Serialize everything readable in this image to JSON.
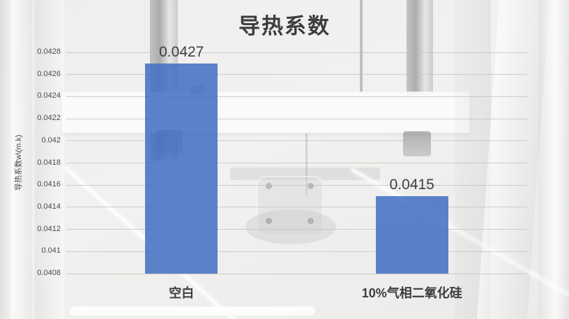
{
  "chart_data": {
    "type": "bar",
    "title": "导热系数",
    "categories": [
      "空白",
      "10%气相二氧化硅"
    ],
    "values": [
      0.0427,
      0.0415
    ],
    "value_labels": [
      "0.0427",
      "0.0415"
    ],
    "series": [
      {
        "name": "导热系数",
        "values": [
          0.0427,
          0.0415
        ]
      }
    ],
    "xlabel": "",
    "ylabel": "导热系数w\\(m.k)",
    "ylim": [
      0.0408,
      0.0428
    ],
    "ytick_step": 0.0002,
    "yticks": [
      "0.0428",
      "0.0426",
      "0.0424",
      "0.0422",
      "0.042",
      "0.0418",
      "0.0416",
      "0.0414",
      "0.0412",
      "0.041",
      "0.0408"
    ],
    "grid": "horizontal-gridlines-on",
    "legend": "none",
    "data_labels_shown": true,
    "bar_color": "#4472C4",
    "title_color": "#3D3D3D",
    "label_color": "#3F3F3F",
    "gridline_color": "#BFBFBF",
    "background_note": "faded white-washed photo of a thermal conductivity test instrument (vertical steel columns, white crossbeam plate, bolts, round sample stage)"
  }
}
